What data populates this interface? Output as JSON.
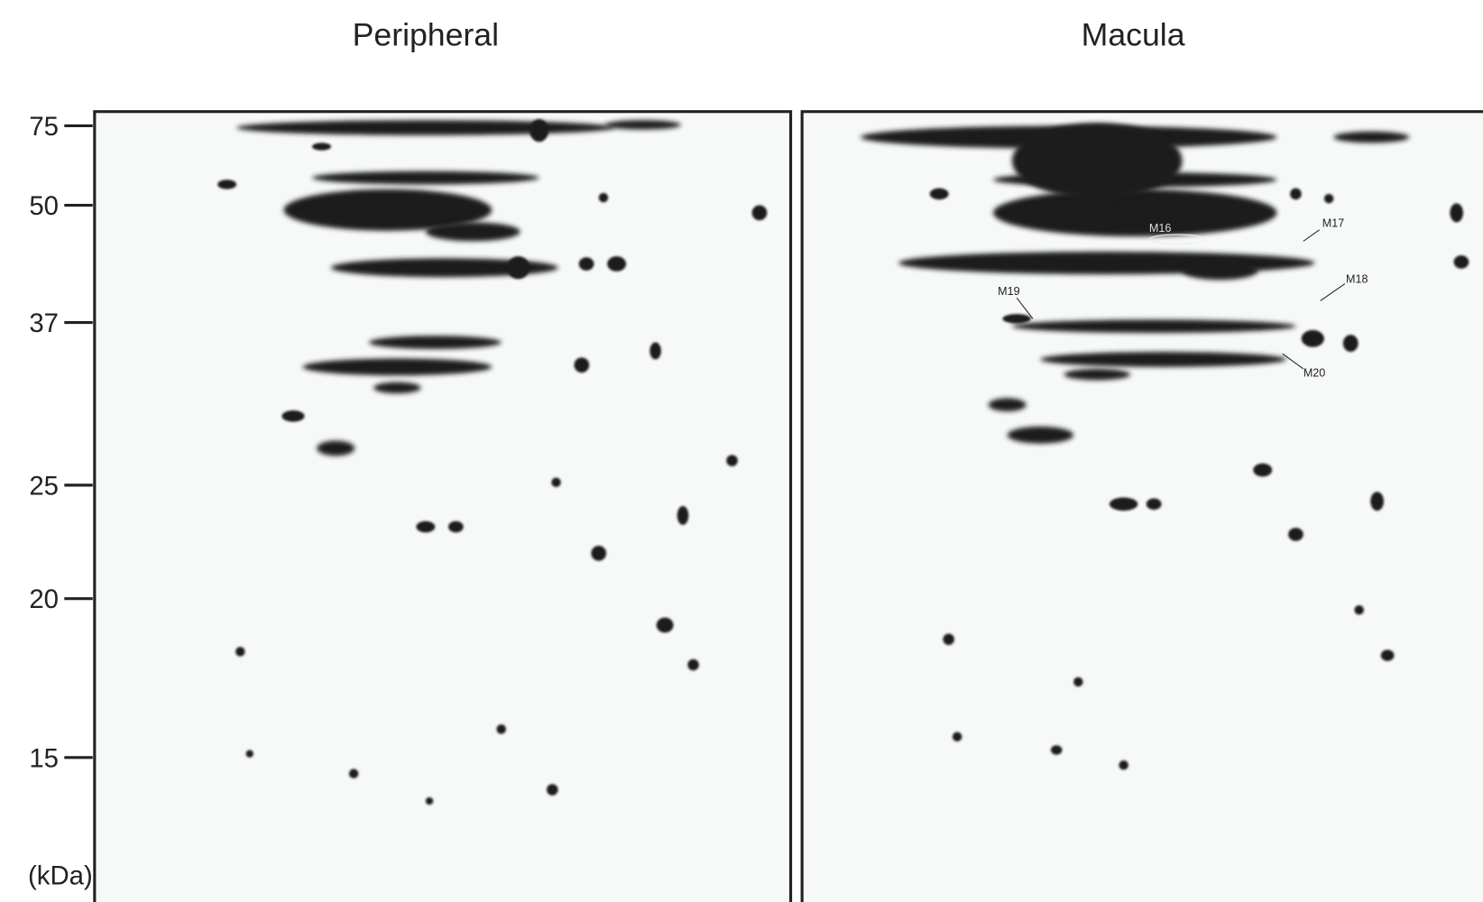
{
  "panels": [
    {
      "title": "Peripheral"
    },
    {
      "title": "Macula"
    }
  ],
  "mw_axis": {
    "markers": [
      75,
      50,
      37,
      25,
      20,
      15
    ],
    "unit": "(kDa)"
  },
  "annotations": [
    "M16",
    "M17",
    "M18",
    "M19",
    "M20"
  ]
}
